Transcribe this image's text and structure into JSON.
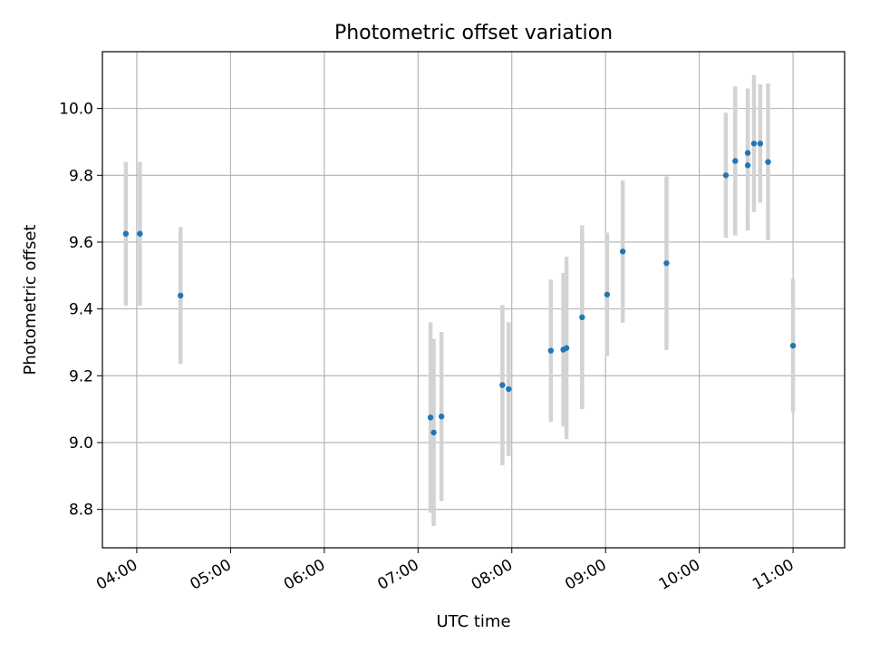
{
  "chart_data": {
    "type": "scatter",
    "title": "Photometric offset variation",
    "xlabel": "UTC time",
    "ylabel": "Photometric offset",
    "x_axis": {
      "kind": "time",
      "range": [
        "03:38",
        "11:33"
      ],
      "ticks": [
        "04:00",
        "05:00",
        "06:00",
        "07:00",
        "08:00",
        "09:00",
        "10:00",
        "11:00"
      ]
    },
    "y_axis": {
      "range": [
        8.685,
        10.17
      ],
      "ticks": [
        "8.8",
        "9.0",
        "9.2",
        "9.4",
        "9.6",
        "9.8",
        "10.0"
      ]
    },
    "grid": true,
    "colors": {
      "points": "#1f77b4",
      "error_bars": "#d3d3d3",
      "grid": "#b0b0b0"
    },
    "points": [
      {
        "x": "03:53",
        "y": 9.625,
        "err": 0.215
      },
      {
        "x": "04:02",
        "y": 9.625,
        "err": 0.215
      },
      {
        "x": "04:28",
        "y": 9.44,
        "err": 0.205
      },
      {
        "x": "07:08",
        "y": 9.075,
        "err": 0.285
      },
      {
        "x": "07:10",
        "y": 9.03,
        "err": 0.28
      },
      {
        "x": "07:15",
        "y": 9.078,
        "err": 0.253
      },
      {
        "x": "07:54",
        "y": 9.172,
        "err": 0.24
      },
      {
        "x": "07:58",
        "y": 9.16,
        "err": 0.2
      },
      {
        "x": "08:25",
        "y": 9.275,
        "err": 0.213
      },
      {
        "x": "08:33",
        "y": 9.278,
        "err": 0.23
      },
      {
        "x": "08:35",
        "y": 9.283,
        "err": 0.273
      },
      {
        "x": "08:45",
        "y": 9.375,
        "err": 0.275
      },
      {
        "x": "09:01",
        "y": 9.443,
        "err": 0.185
      },
      {
        "x": "09:11",
        "y": 9.572,
        "err": 0.213
      },
      {
        "x": "09:39",
        "y": 9.537,
        "err": 0.26
      },
      {
        "x": "10:17",
        "y": 9.8,
        "err": 0.187
      },
      {
        "x": "10:23",
        "y": 9.843,
        "err": 0.223
      },
      {
        "x": "10:31",
        "y": 9.83,
        "err": 0.195
      },
      {
        "x": "10:31",
        "y": 9.867,
        "err": 0.193
      },
      {
        "x": "10:35",
        "y": 9.895,
        "err": 0.205
      },
      {
        "x": "10:39",
        "y": 9.895,
        "err": 0.177
      },
      {
        "x": "10:44",
        "y": 9.84,
        "err": 0.235
      },
      {
        "x": "11:00",
        "y": 9.29,
        "err": 0.2
      }
    ]
  }
}
